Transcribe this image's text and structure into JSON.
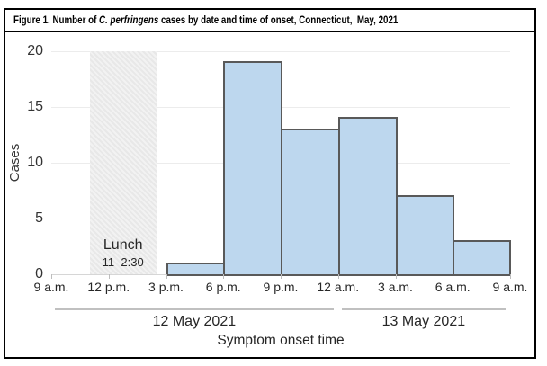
{
  "figure": {
    "title_prefix": "Figure 1. Number of ",
    "title_italic": "C. perfringens",
    "title_suffix": " cases by date and time of onset, Connecticut,  May, 2021"
  },
  "chart_data": {
    "type": "bar",
    "title": "Figure 1. Number of C. perfringens cases by date and time of onset, Connecticut, May, 2021",
    "ylabel": "Cases",
    "xlabel": "Symptom onset time",
    "ylim": [
      0,
      20
    ],
    "yticks": [
      0,
      5,
      10,
      15,
      20
    ],
    "x_tick_labels": [
      "9 a.m.",
      "12 p.m.",
      "3 p.m.",
      "6 p.m.",
      "9 p.m.",
      "12 a.m.",
      "3 a.m.",
      "6 a.m.",
      "9 a.m."
    ],
    "grid": true,
    "legend": false,
    "bars": {
      "start_tick_index": 2,
      "bin_hours": 3,
      "labels": [
        "3–6 p.m.",
        "6–9 p.m.",
        "9 p.m.–12 a.m.",
        "12–3 a.m.",
        "3–6 a.m.",
        "6–9 a.m."
      ],
      "values": [
        1,
        19,
        13,
        14,
        7,
        3
      ]
    },
    "annotation": {
      "label": "Lunch",
      "time_range": "11–2:30",
      "start_hour": 11,
      "end_hour": 14.5
    },
    "date_groups": [
      {
        "label": "12 May 2021",
        "from_tick": 0,
        "to_tick": 5
      },
      {
        "label": "13 May 2021",
        "from_tick": 5,
        "to_tick": 8
      }
    ]
  },
  "colors": {
    "bar_fill": "#bdd7ee",
    "bar_border": "#595959",
    "lunch_fill": "#e8e8e8",
    "lunch_hatch": "#f2f2f2",
    "gridline": "#ececec",
    "baseline": "#d6d6d6",
    "tick_mark": "#bdbdbd",
    "bracket": "#c0c0c0",
    "text": "#262626",
    "frame_border": "#000000"
  }
}
